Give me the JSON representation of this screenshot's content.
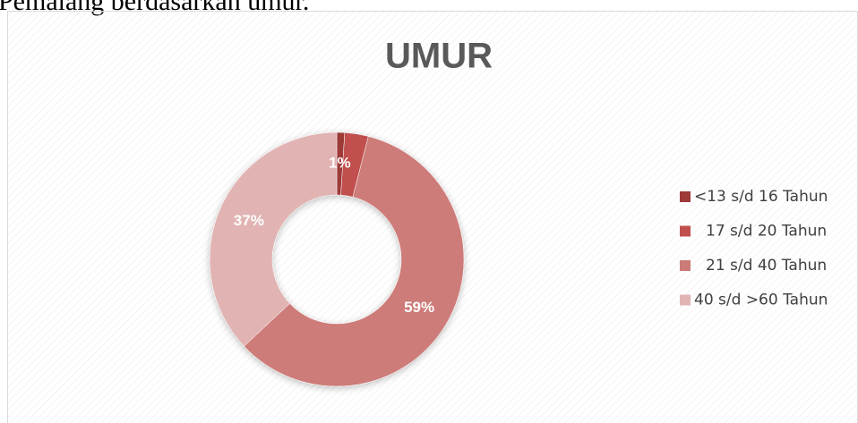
{
  "page_text": "Pemalang  berdasarkan umur.",
  "chart_data": {
    "type": "donut",
    "title": "UMUR",
    "categories": [
      "<13 s/d 16 Tahun",
      "17 s/d 20 Tahun",
      "21 s/d 40 Tahun",
      "40 s/d >60 Tahun"
    ],
    "values": [
      1,
      3,
      59,
      37
    ],
    "value_labels": [
      "1%",
      null,
      "59%",
      "37%"
    ],
    "colors": [
      "#9e3a38",
      "#c0504d",
      "#cd7b79",
      "#e1b4b3"
    ],
    "legend": "right"
  }
}
